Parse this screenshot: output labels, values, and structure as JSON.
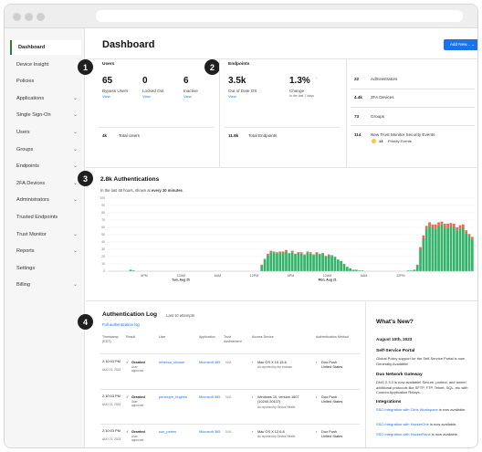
{
  "sidebar": {
    "items": [
      {
        "label": "Dashboard",
        "chevron": false,
        "active": true
      },
      {
        "label": "Device Insight",
        "chevron": false
      },
      {
        "label": "Policies",
        "chevron": false
      },
      {
        "label": "Applications",
        "chevron": true
      },
      {
        "label": "Single Sign-On",
        "chevron": true
      },
      {
        "label": "Users",
        "chevron": true
      },
      {
        "label": "Groups",
        "chevron": true
      },
      {
        "label": "Endpoints",
        "chevron": true
      },
      {
        "label": "2FA Devices",
        "chevron": true
      },
      {
        "label": "Administrators",
        "chevron": true
      },
      {
        "label": "Trusted Endpoints",
        "chevron": false
      },
      {
        "label": "Trust Monitor",
        "chevron": true
      },
      {
        "label": "Reports",
        "chevron": true
      },
      {
        "label": "Settings",
        "chevron": false
      },
      {
        "label": "Billing",
        "chevron": true
      }
    ]
  },
  "header": {
    "title": "Dashboard",
    "add_button": "Add New...  ⌄"
  },
  "badges": [
    "1",
    "2",
    "3",
    "4"
  ],
  "users": {
    "title": "Users",
    "stats": [
      {
        "value": "65",
        "label": "Bypass Users",
        "link": "View"
      },
      {
        "value": "0",
        "label": "Locked Out",
        "link": "View"
      },
      {
        "value": "6",
        "label": "Inactive",
        "link": "View"
      }
    ],
    "total_value": "4k",
    "total_label": "Total Users"
  },
  "endpoints": {
    "title": "Endpoints",
    "out_of_date_value": "3.5k",
    "out_of_date_label": "Out of Date OS",
    "out_of_date_link": "View",
    "change_value": "1.3%",
    "change_arrow": "↓",
    "change_label": "Change",
    "change_sub": "in the last 7 days",
    "total_value": "11.8k",
    "total_label": "Total Endpoints"
  },
  "summary": [
    {
      "value": "22",
      "label": "Administrators"
    },
    {
      "value": "4.4k",
      "label": "2FA Devices"
    },
    {
      "value": "73",
      "label": "Groups"
    }
  ],
  "trust_monitor": {
    "value": "114",
    "label": "New Trust Monitor Security Events",
    "priority_value": "13",
    "priority_label": "Priority Events",
    "priority_color": "#f2c94c"
  },
  "authentications": {
    "title": "2.8k Authentications",
    "sub_prefix": "In the last 48 hours, shown at ",
    "sub_bold": "every 30 minutes",
    "sub_suffix": "."
  },
  "chart_data": {
    "type": "bar",
    "stacked": true,
    "series": [
      {
        "color": "#35b36a",
        "values": [
          0,
          0,
          0,
          0,
          0,
          0,
          0,
          2,
          1,
          0,
          0,
          0,
          0,
          0,
          0,
          0,
          0,
          0,
          0,
          0,
          0,
          0,
          0,
          0,
          0,
          0,
          0,
          0,
          0,
          0,
          0,
          0,
          0,
          0,
          0,
          0,
          0,
          0,
          0,
          0,
          0,
          0,
          0,
          0,
          0,
          0,
          0,
          0,
          0,
          0,
          8,
          16,
          22,
          26,
          26,
          24,
          26,
          25,
          27,
          24,
          26,
          23,
          25,
          24,
          22,
          26,
          24,
          22,
          25,
          23,
          24,
          20,
          22,
          21,
          19,
          16,
          14,
          10,
          6,
          4,
          2,
          2,
          1,
          1,
          0,
          0,
          0,
          0,
          0,
          0,
          0,
          0,
          0,
          0,
          0,
          0,
          0,
          0,
          1,
          1,
          2,
          8,
          30,
          45,
          58,
          62,
          60,
          58,
          62,
          64,
          60,
          59,
          62,
          60,
          56,
          58,
          60,
          52,
          48,
          44
        ]
      },
      {
        "color": "#ea6a55",
        "values": [
          0,
          0,
          0,
          0,
          0,
          0,
          0,
          0,
          0,
          0,
          0,
          0,
          0,
          0,
          0,
          0,
          0,
          0,
          0,
          0,
          0,
          0,
          0,
          0,
          0,
          0,
          0,
          0,
          0,
          0,
          0,
          0,
          0,
          0,
          0,
          0,
          0,
          0,
          0,
          0,
          0,
          0,
          0,
          0,
          0,
          0,
          0,
          0,
          0,
          0,
          1,
          1,
          2,
          2,
          1,
          2,
          1,
          2,
          2,
          1,
          2,
          1,
          1,
          2,
          1,
          1,
          2,
          1,
          1,
          1,
          1,
          1,
          1,
          1,
          1,
          0,
          0,
          0,
          0,
          0,
          0,
          0,
          0,
          0,
          0,
          0,
          0,
          0,
          0,
          0,
          0,
          0,
          0,
          0,
          0,
          0,
          0,
          0,
          0,
          0,
          0,
          1,
          3,
          4,
          4,
          5,
          4,
          6,
          5,
          4,
          5,
          6,
          4,
          5,
          4,
          5,
          4,
          4,
          3,
          3
        ]
      }
    ],
    "ylim": [
      0,
      100
    ],
    "y_ticks": [
      0,
      10,
      20,
      30,
      40,
      50,
      60,
      70,
      80,
      90,
      100
    ],
    "x_ticks": [
      {
        "label": "6PM",
        "sub": "",
        "index": 12
      },
      {
        "label": "12AM",
        "sub": "Sun, Aug 20",
        "index": 24
      },
      {
        "label": "6AM",
        "sub": "",
        "index": 36
      },
      {
        "label": "12PM",
        "sub": "",
        "index": 48
      },
      {
        "label": "6PM",
        "sub": "",
        "index": 60
      },
      {
        "label": "12AM",
        "sub": "Mon, Aug 21",
        "index": 72
      },
      {
        "label": "6AM",
        "sub": "",
        "index": 84
      },
      {
        "label": "12PM",
        "sub": "",
        "index": 96
      }
    ],
    "grid": true
  },
  "auth_log": {
    "title": "Authentication Log",
    "sub": "Last 10 attempts",
    "link": "Full authentication log",
    "columns": [
      "Timestamp (EDT)",
      "Result",
      "User",
      "Application",
      "Trust Assessment",
      "Access Device",
      "Authentication Method"
    ],
    "rows": [
      {
        "time": "2:10:03 PM",
        "date": "AUG 21, 2023",
        "result": "Granted",
        "result_sub": "User approved",
        "user": "rebecca_shower",
        "app": "Microsoft 365",
        "trust": "N/A",
        "device": "Mac OS X 10.15.6",
        "device_sub": "As reported by the browser",
        "method": "Duo Push",
        "location": "United States"
      },
      {
        "time": "2:10:03 PM",
        "date": "AUG 21, 2023",
        "result": "Granted",
        "result_sub": "User approved",
        "user": "penelope_hughes",
        "app": "Microsoft 365",
        "trust": "N/A",
        "device": "Windows 10, version 1607 (10240.20107)",
        "device_sub": "As reported by Device Health",
        "method": "Duo Push",
        "location": "United States"
      },
      {
        "time": "2:10:03 PM",
        "date": "AUG 21, 2023",
        "result": "Granted",
        "result_sub": "User approved",
        "user": "sun_peters",
        "app": "Microsoft 365",
        "trust": "N/A",
        "device": "Mac OS X 12.6.8",
        "device_sub": "As reported by Device Health",
        "method": "Duo Push",
        "location": "United States"
      }
    ]
  },
  "whats_new": {
    "title": "What's New?",
    "date": "August 10th, 2023",
    "sections": [
      {
        "heading": "Self-Service Portal",
        "text": "Global Policy support for the Self-Service Portal is now Generally Available!"
      },
      {
        "heading": "Duo Network Gateway",
        "text": "DNG 2.3.0 is now available! Secure, protect, and tunnel additional protocols like SFTP, FTP, Telnet, SQL, etc with Custom Application Relays."
      },
      {
        "heading": "Integrations",
        "text": ""
      }
    ],
    "integrations": [
      {
        "link": "SSO integration with Citrix Workspace",
        "suffix": " is now available."
      },
      {
        "link": "SSO integration with HackerOne",
        "suffix": " is now available."
      },
      {
        "link": "SSO integration with HackerRank",
        "suffix": " is now available."
      }
    ]
  }
}
